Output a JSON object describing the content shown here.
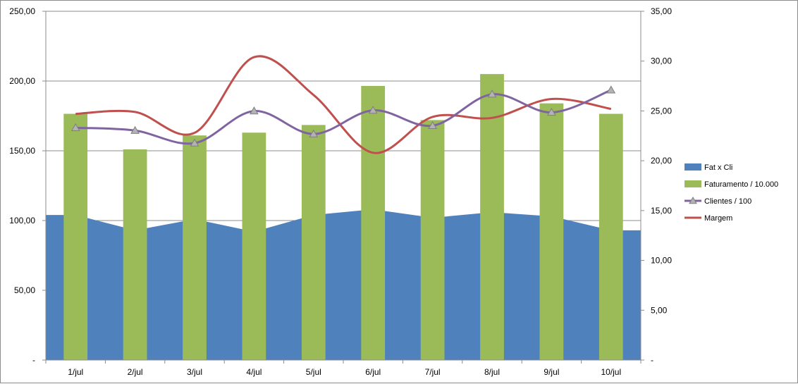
{
  "chart_data": {
    "type": "bar",
    "categories": [
      "1/jul",
      "2/jul",
      "3/jul",
      "4/jul",
      "5/jul",
      "6/jul",
      "7/jul",
      "8/jul",
      "9/jul",
      "10/jul"
    ],
    "left_axis": {
      "ylim": [
        0,
        250
      ],
      "ticks": [
        0,
        50,
        100,
        150,
        200,
        250
      ],
      "tick_labels": [
        "-",
        "50,00",
        "100,00",
        "150,00",
        "200,00",
        "250,00"
      ]
    },
    "right_axis": {
      "ylim": [
        0,
        35
      ],
      "ticks": [
        0,
        5,
        10,
        15,
        20,
        25,
        30,
        35
      ],
      "tick_labels": [
        "-",
        "5,00",
        "10,00",
        "15,00",
        "20,00",
        "25,00",
        "30,00",
        "35,00"
      ]
    },
    "grid": true,
    "legend_position": "right",
    "series": [
      {
        "name": "Fat x Cli",
        "kind": "area",
        "axis": "left",
        "color": "#4f81bd",
        "values": [
          104,
          93,
          101,
          92,
          104,
          108,
          102,
          106,
          103,
          93
        ]
      },
      {
        "name": "Faturamento / 10.000",
        "kind": "bar",
        "axis": "left",
        "color": "#9bbb59",
        "values": [
          176.5,
          151,
          161,
          163,
          168.5,
          196.5,
          172,
          205,
          184,
          176.5
        ]
      },
      {
        "name": "Clientes / 100",
        "kind": "line-marker",
        "axis": "left",
        "color": "#8064a2",
        "values": [
          166.5,
          164.5,
          155.5,
          178.5,
          162,
          179,
          168,
          190.5,
          177.5,
          193.5
        ]
      },
      {
        "name": "Margem",
        "kind": "line",
        "axis": "right",
        "color": "#c0504d",
        "values": [
          24.7,
          24.9,
          22.8,
          30.4,
          26.6,
          20.8,
          24.4,
          24.3,
          26.2,
          25.2
        ]
      }
    ]
  }
}
